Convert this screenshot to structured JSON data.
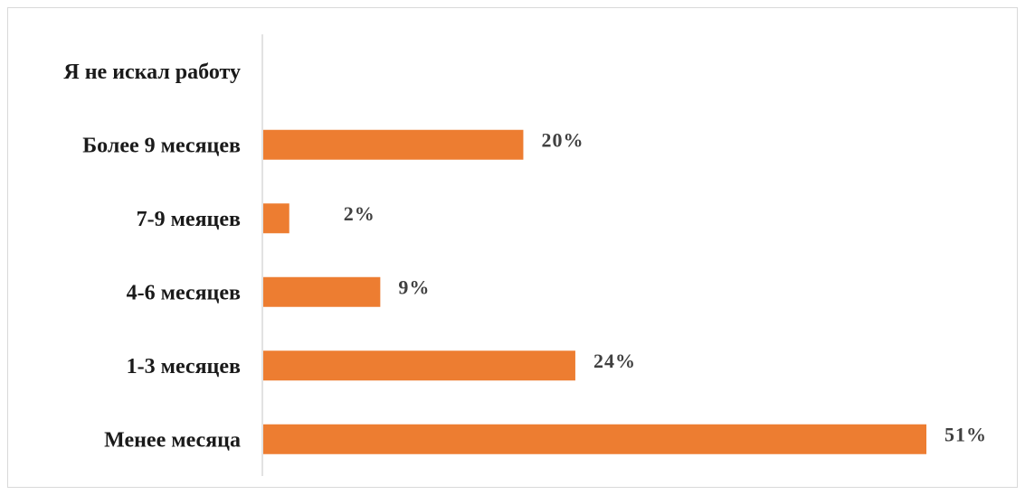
{
  "chart_data": {
    "type": "bar",
    "orientation": "horizontal",
    "categories": [
      "Я не искал работу",
      "Более 9 месяцев",
      "7-9 меяцев",
      "4-6 месяцев",
      "1-3 месяцев",
      "Менее месяца"
    ],
    "values": [
      null,
      20,
      2,
      9,
      24,
      51
    ],
    "value_labels": [
      "",
      "20%",
      "2%",
      "9%",
      "24%",
      "51%"
    ],
    "xlim": [
      0,
      51
    ],
    "colors": {
      "bar": "#ed7d31",
      "axis": "#d9d9d9"
    },
    "grid": false,
    "legend": "none"
  }
}
